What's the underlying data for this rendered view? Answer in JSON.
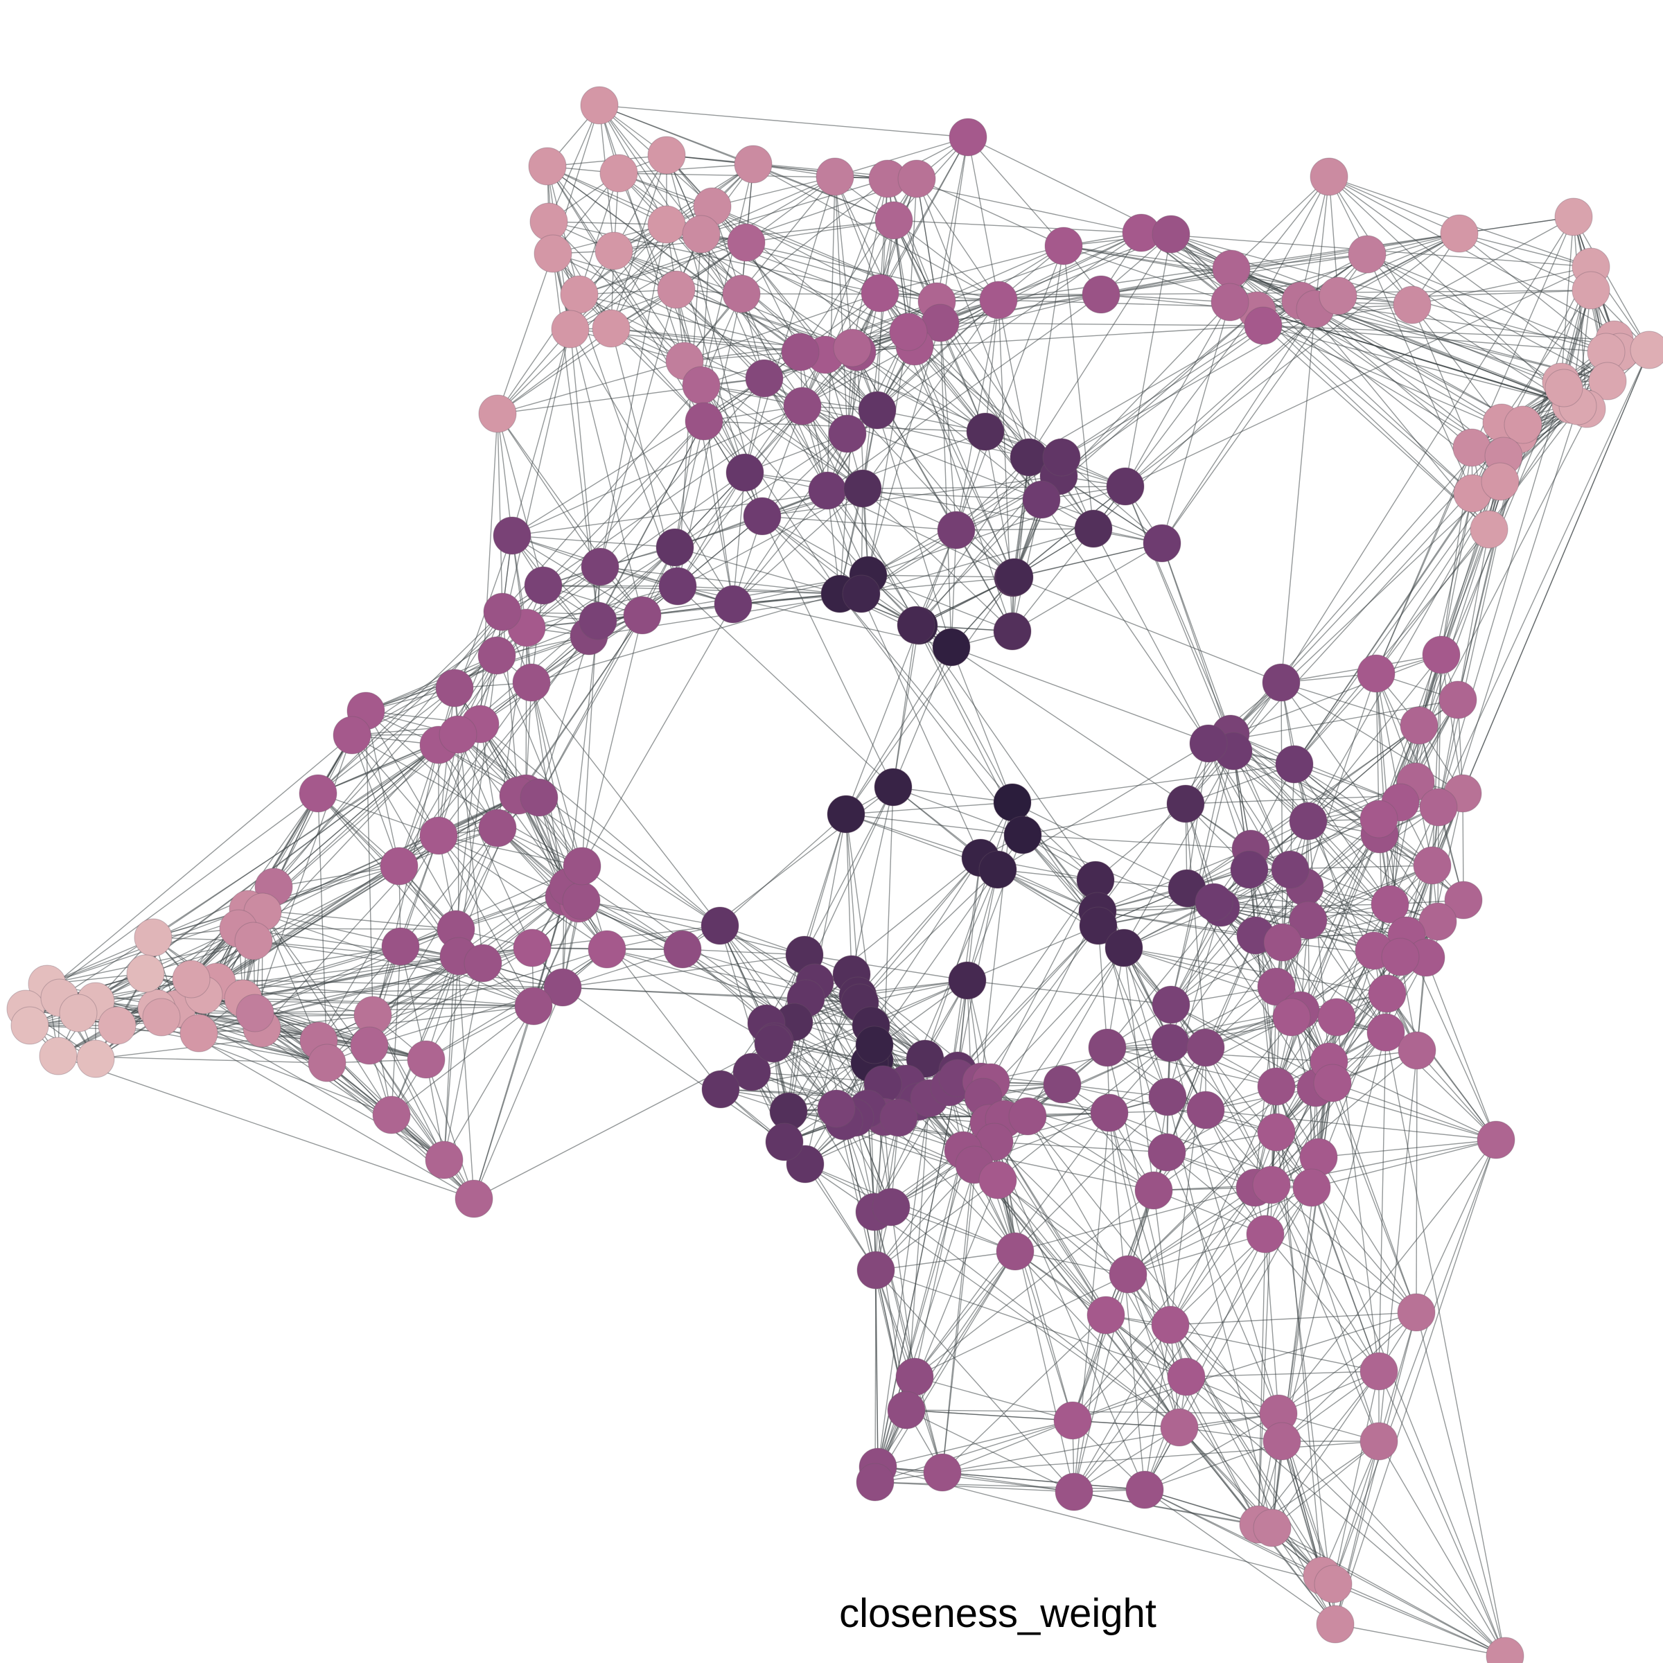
{
  "caption": "closeness_weight",
  "palette": {
    "low": "#ecd1c9",
    "mid_low": "#d497a6",
    "mid": "#a5598c",
    "mid_high": "#6e3c70",
    "high": "#2b1d3c"
  }
}
